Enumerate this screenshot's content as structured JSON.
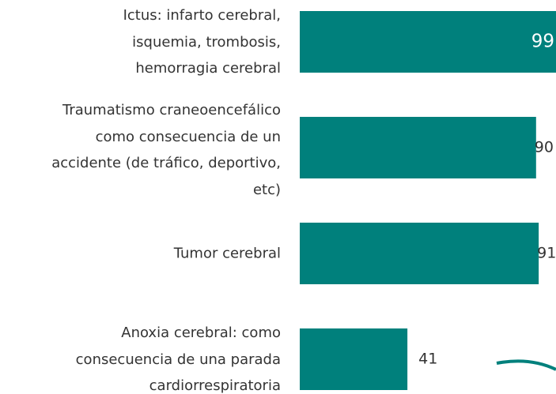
{
  "chart_data": {
    "type": "bar",
    "orientation": "horizontal",
    "categories": [
      "Ictus:  infarto cerebral,\nisquemia, trombosis,\nhemorragia cerebral",
      "Traumatismo craneoencefálico\ncomo consecuencia de un\naccidente (de tráfico, deportivo,\netc)",
      "Tumor cerebral",
      "Anoxia cerebral: como\nconsecuencia de una parada\ncardiorrespiratoria"
    ],
    "values": [
      99,
      90,
      91,
      41
    ],
    "color": "#00807c",
    "xlim": [
      0,
      100
    ]
  }
}
